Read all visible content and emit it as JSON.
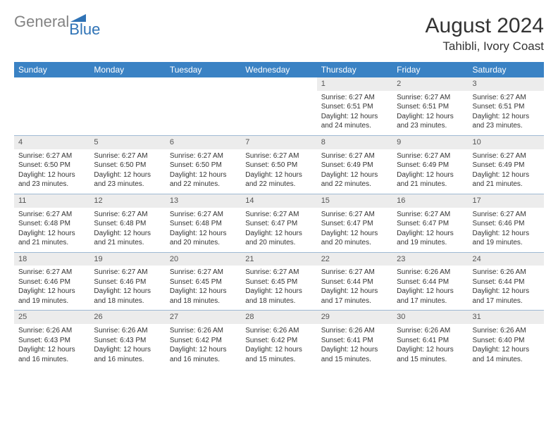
{
  "logo": {
    "part1": "General",
    "part2": "Blue"
  },
  "title": {
    "month": "August 2024",
    "location": "Tahibli, Ivory Coast"
  },
  "colors": {
    "header_bg": "#3a82c4",
    "header_text": "#ffffff",
    "daynum_bg": "#ececec",
    "rule": "#9fb9d3",
    "logo_gray": "#838383",
    "logo_blue": "#2f73b6",
    "text": "#333333"
  },
  "weekdays": [
    "Sunday",
    "Monday",
    "Tuesday",
    "Wednesday",
    "Thursday",
    "Friday",
    "Saturday"
  ],
  "weeks": [
    [
      {
        "n": 0,
        "empty": true
      },
      {
        "n": 0,
        "empty": true
      },
      {
        "n": 0,
        "empty": true
      },
      {
        "n": 0,
        "empty": true
      },
      {
        "n": 1,
        "sunrise": "Sunrise: 6:27 AM",
        "sunset": "Sunset: 6:51 PM",
        "daylight": "Daylight: 12 hours and 24 minutes."
      },
      {
        "n": 2,
        "sunrise": "Sunrise: 6:27 AM",
        "sunset": "Sunset: 6:51 PM",
        "daylight": "Daylight: 12 hours and 23 minutes."
      },
      {
        "n": 3,
        "sunrise": "Sunrise: 6:27 AM",
        "sunset": "Sunset: 6:51 PM",
        "daylight": "Daylight: 12 hours and 23 minutes."
      }
    ],
    [
      {
        "n": 4,
        "sunrise": "Sunrise: 6:27 AM",
        "sunset": "Sunset: 6:50 PM",
        "daylight": "Daylight: 12 hours and 23 minutes."
      },
      {
        "n": 5,
        "sunrise": "Sunrise: 6:27 AM",
        "sunset": "Sunset: 6:50 PM",
        "daylight": "Daylight: 12 hours and 23 minutes."
      },
      {
        "n": 6,
        "sunrise": "Sunrise: 6:27 AM",
        "sunset": "Sunset: 6:50 PM",
        "daylight": "Daylight: 12 hours and 22 minutes."
      },
      {
        "n": 7,
        "sunrise": "Sunrise: 6:27 AM",
        "sunset": "Sunset: 6:50 PM",
        "daylight": "Daylight: 12 hours and 22 minutes."
      },
      {
        "n": 8,
        "sunrise": "Sunrise: 6:27 AM",
        "sunset": "Sunset: 6:49 PM",
        "daylight": "Daylight: 12 hours and 22 minutes."
      },
      {
        "n": 9,
        "sunrise": "Sunrise: 6:27 AM",
        "sunset": "Sunset: 6:49 PM",
        "daylight": "Daylight: 12 hours and 21 minutes."
      },
      {
        "n": 10,
        "sunrise": "Sunrise: 6:27 AM",
        "sunset": "Sunset: 6:49 PM",
        "daylight": "Daylight: 12 hours and 21 minutes."
      }
    ],
    [
      {
        "n": 11,
        "sunrise": "Sunrise: 6:27 AM",
        "sunset": "Sunset: 6:48 PM",
        "daylight": "Daylight: 12 hours and 21 minutes."
      },
      {
        "n": 12,
        "sunrise": "Sunrise: 6:27 AM",
        "sunset": "Sunset: 6:48 PM",
        "daylight": "Daylight: 12 hours and 21 minutes."
      },
      {
        "n": 13,
        "sunrise": "Sunrise: 6:27 AM",
        "sunset": "Sunset: 6:48 PM",
        "daylight": "Daylight: 12 hours and 20 minutes."
      },
      {
        "n": 14,
        "sunrise": "Sunrise: 6:27 AM",
        "sunset": "Sunset: 6:47 PM",
        "daylight": "Daylight: 12 hours and 20 minutes."
      },
      {
        "n": 15,
        "sunrise": "Sunrise: 6:27 AM",
        "sunset": "Sunset: 6:47 PM",
        "daylight": "Daylight: 12 hours and 20 minutes."
      },
      {
        "n": 16,
        "sunrise": "Sunrise: 6:27 AM",
        "sunset": "Sunset: 6:47 PM",
        "daylight": "Daylight: 12 hours and 19 minutes."
      },
      {
        "n": 17,
        "sunrise": "Sunrise: 6:27 AM",
        "sunset": "Sunset: 6:46 PM",
        "daylight": "Daylight: 12 hours and 19 minutes."
      }
    ],
    [
      {
        "n": 18,
        "sunrise": "Sunrise: 6:27 AM",
        "sunset": "Sunset: 6:46 PM",
        "daylight": "Daylight: 12 hours and 19 minutes."
      },
      {
        "n": 19,
        "sunrise": "Sunrise: 6:27 AM",
        "sunset": "Sunset: 6:46 PM",
        "daylight": "Daylight: 12 hours and 18 minutes."
      },
      {
        "n": 20,
        "sunrise": "Sunrise: 6:27 AM",
        "sunset": "Sunset: 6:45 PM",
        "daylight": "Daylight: 12 hours and 18 minutes."
      },
      {
        "n": 21,
        "sunrise": "Sunrise: 6:27 AM",
        "sunset": "Sunset: 6:45 PM",
        "daylight": "Daylight: 12 hours and 18 minutes."
      },
      {
        "n": 22,
        "sunrise": "Sunrise: 6:27 AM",
        "sunset": "Sunset: 6:44 PM",
        "daylight": "Daylight: 12 hours and 17 minutes."
      },
      {
        "n": 23,
        "sunrise": "Sunrise: 6:26 AM",
        "sunset": "Sunset: 6:44 PM",
        "daylight": "Daylight: 12 hours and 17 minutes."
      },
      {
        "n": 24,
        "sunrise": "Sunrise: 6:26 AM",
        "sunset": "Sunset: 6:44 PM",
        "daylight": "Daylight: 12 hours and 17 minutes."
      }
    ],
    [
      {
        "n": 25,
        "sunrise": "Sunrise: 6:26 AM",
        "sunset": "Sunset: 6:43 PM",
        "daylight": "Daylight: 12 hours and 16 minutes."
      },
      {
        "n": 26,
        "sunrise": "Sunrise: 6:26 AM",
        "sunset": "Sunset: 6:43 PM",
        "daylight": "Daylight: 12 hours and 16 minutes."
      },
      {
        "n": 27,
        "sunrise": "Sunrise: 6:26 AM",
        "sunset": "Sunset: 6:42 PM",
        "daylight": "Daylight: 12 hours and 16 minutes."
      },
      {
        "n": 28,
        "sunrise": "Sunrise: 6:26 AM",
        "sunset": "Sunset: 6:42 PM",
        "daylight": "Daylight: 12 hours and 15 minutes."
      },
      {
        "n": 29,
        "sunrise": "Sunrise: 6:26 AM",
        "sunset": "Sunset: 6:41 PM",
        "daylight": "Daylight: 12 hours and 15 minutes."
      },
      {
        "n": 30,
        "sunrise": "Sunrise: 6:26 AM",
        "sunset": "Sunset: 6:41 PM",
        "daylight": "Daylight: 12 hours and 15 minutes."
      },
      {
        "n": 31,
        "sunrise": "Sunrise: 6:26 AM",
        "sunset": "Sunset: 6:40 PM",
        "daylight": "Daylight: 12 hours and 14 minutes."
      }
    ]
  ]
}
